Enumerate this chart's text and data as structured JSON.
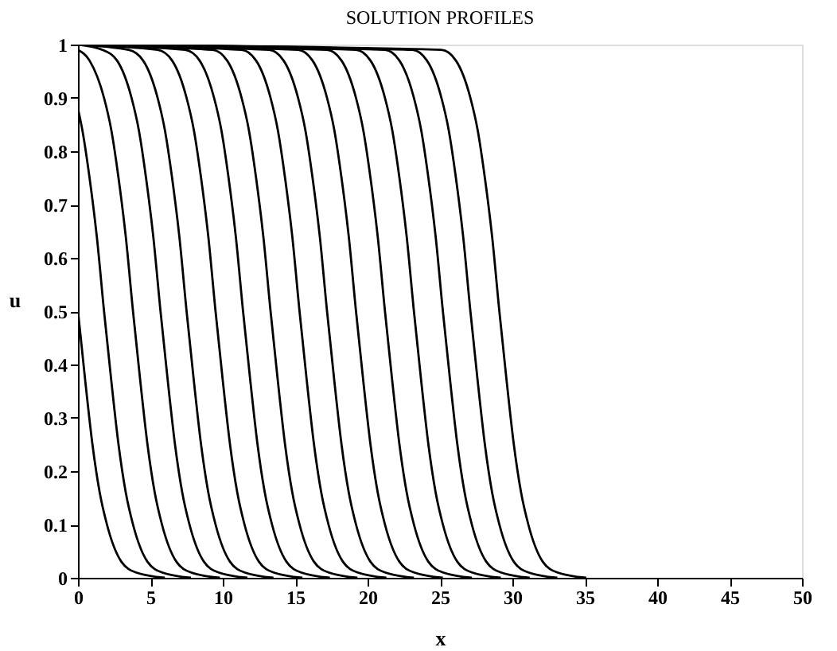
{
  "chart_data": {
    "type": "line",
    "title": "SOLUTION PROFILES",
    "xlabel": "x",
    "ylabel": "u",
    "xlim": [
      0,
      50
    ],
    "ylim": [
      0,
      1
    ],
    "xticks": [
      0,
      5,
      10,
      15,
      20,
      25,
      30,
      35,
      40,
      45,
      50
    ],
    "yticks": [
      0,
      0.1,
      0.2,
      0.3,
      0.4,
      0.5,
      0.6,
      0.7,
      0.8,
      0.9,
      1
    ],
    "grid": false,
    "legend": false,
    "line_style": "solid",
    "series": [
      {
        "color": "#000000",
        "x": [
          0,
          0.5,
          1,
          1.5,
          2,
          3,
          4,
          6
        ],
        "values": [
          0.5,
          0.37,
          0.25,
          0.16,
          0.1,
          0.03,
          0.01,
          0
        ]
      },
      {
        "color": "#000000",
        "x": [
          0,
          0.3,
          0.8,
          1.3,
          1.8,
          2.3,
          2.8,
          3.3,
          3.8,
          4.8,
          5.8,
          7.8
        ],
        "values": [
          0.88,
          0.84,
          0.75,
          0.64,
          0.5,
          0.37,
          0.25,
          0.16,
          0.1,
          0.03,
          0.01,
          0
        ]
      },
      {
        "color": "#000000",
        "x": [
          0,
          0.8,
          1.8,
          2.3,
          2.8,
          3.3,
          3.8,
          4.3,
          4.8,
          5.3,
          5.8,
          6.8,
          7.8,
          9.8
        ],
        "values": [
          0.99,
          0.97,
          0.9,
          0.84,
          0.75,
          0.64,
          0.5,
          0.37,
          0.25,
          0.16,
          0.1,
          0.03,
          0.01,
          0
        ]
      },
      {
        "color": "#000000",
        "x": [
          0,
          1.7,
          2.7,
          3.7,
          4.2,
          4.7,
          5.2,
          5.7,
          6.2,
          6.7,
          7.2,
          7.7,
          8.7,
          9.7,
          11.7
        ],
        "values": [
          1,
          0.99,
          0.97,
          0.9,
          0.84,
          0.75,
          0.64,
          0.5,
          0.37,
          0.25,
          0.16,
          0.1,
          0.03,
          0.01,
          0
        ]
      },
      {
        "color": "#000000",
        "x": [
          0,
          3.5,
          4.5,
          5.5,
          6,
          6.5,
          7,
          7.5,
          8,
          8.5,
          9,
          9.5,
          10.5,
          11.5,
          13.5
        ],
        "values": [
          1,
          0.99,
          0.97,
          0.9,
          0.84,
          0.75,
          0.64,
          0.5,
          0.37,
          0.25,
          0.16,
          0.1,
          0.03,
          0.01,
          0
        ]
      },
      {
        "color": "#000000",
        "x": [
          0,
          5.5,
          6.5,
          7.5,
          8,
          8.5,
          9,
          9.5,
          10,
          10.5,
          11,
          11.5,
          12.5,
          13.5,
          15.5
        ],
        "values": [
          1,
          0.99,
          0.97,
          0.9,
          0.84,
          0.75,
          0.64,
          0.5,
          0.37,
          0.25,
          0.16,
          0.1,
          0.03,
          0.01,
          0
        ]
      },
      {
        "color": "#000000",
        "x": [
          0,
          7.4,
          8.4,
          9.4,
          9.9,
          10.4,
          10.9,
          11.4,
          11.9,
          12.4,
          12.9,
          13.4,
          14.4,
          15.4,
          17.4
        ],
        "values": [
          1,
          0.99,
          0.97,
          0.9,
          0.84,
          0.75,
          0.64,
          0.5,
          0.37,
          0.25,
          0.16,
          0.1,
          0.03,
          0.01,
          0
        ]
      },
      {
        "color": "#000000",
        "x": [
          0,
          9.3,
          10.3,
          11.3,
          11.8,
          12.3,
          12.8,
          13.3,
          13.8,
          14.3,
          14.8,
          15.3,
          16.3,
          17.3,
          19.3
        ],
        "values": [
          1,
          0.99,
          0.97,
          0.9,
          0.84,
          0.75,
          0.64,
          0.5,
          0.37,
          0.25,
          0.16,
          0.1,
          0.03,
          0.01,
          0
        ]
      },
      {
        "color": "#000000",
        "x": [
          0,
          11.3,
          12.3,
          13.3,
          13.8,
          14.3,
          14.8,
          15.3,
          15.8,
          16.3,
          16.8,
          17.3,
          18.3,
          19.3,
          21.3
        ],
        "values": [
          1,
          0.99,
          0.97,
          0.9,
          0.84,
          0.75,
          0.64,
          0.5,
          0.37,
          0.25,
          0.16,
          0.1,
          0.03,
          0.01,
          0
        ]
      },
      {
        "color": "#000000",
        "x": [
          0,
          13.2,
          14.2,
          15.2,
          15.7,
          16.2,
          16.7,
          17.2,
          17.7,
          18.2,
          18.7,
          19.2,
          20.2,
          21.2,
          23.2
        ],
        "values": [
          1,
          0.99,
          0.97,
          0.9,
          0.84,
          0.75,
          0.64,
          0.5,
          0.37,
          0.25,
          0.16,
          0.1,
          0.03,
          0.01,
          0
        ]
      },
      {
        "color": "#000000",
        "x": [
          0,
          15.2,
          16.2,
          17.2,
          17.7,
          18.2,
          18.7,
          19.2,
          19.7,
          20.2,
          20.7,
          21.2,
          22.2,
          23.2,
          25.2
        ],
        "values": [
          1,
          0.99,
          0.97,
          0.9,
          0.84,
          0.75,
          0.64,
          0.5,
          0.37,
          0.25,
          0.16,
          0.1,
          0.03,
          0.01,
          0
        ]
      },
      {
        "color": "#000000",
        "x": [
          0,
          17.2,
          18.2,
          19.2,
          19.7,
          20.2,
          20.7,
          21.2,
          21.7,
          22.2,
          22.7,
          23.2,
          24.2,
          25.2,
          27.2
        ],
        "values": [
          1,
          0.99,
          0.97,
          0.9,
          0.84,
          0.75,
          0.64,
          0.5,
          0.37,
          0.25,
          0.16,
          0.1,
          0.03,
          0.01,
          0
        ]
      },
      {
        "color": "#000000",
        "x": [
          0,
          19.2,
          20.2,
          21.2,
          21.7,
          22.2,
          22.7,
          23.2,
          23.7,
          24.2,
          24.7,
          25.2,
          26.2,
          27.2,
          29.2
        ],
        "values": [
          1,
          0.99,
          0.97,
          0.9,
          0.84,
          0.75,
          0.64,
          0.5,
          0.37,
          0.25,
          0.16,
          0.1,
          0.03,
          0.01,
          0
        ]
      },
      {
        "color": "#000000",
        "x": [
          0,
          21.2,
          22.2,
          23.2,
          23.7,
          24.2,
          24.7,
          25.2,
          25.7,
          26.2,
          26.7,
          27.2,
          28.2,
          29.2,
          31.2
        ],
        "values": [
          1,
          0.99,
          0.97,
          0.9,
          0.84,
          0.75,
          0.64,
          0.5,
          0.37,
          0.25,
          0.16,
          0.1,
          0.03,
          0.01,
          0
        ]
      },
      {
        "color": "#000000",
        "x": [
          0,
          23.1,
          24.1,
          25.1,
          25.6,
          26.1,
          26.6,
          27.1,
          27.6,
          28.1,
          28.6,
          29.1,
          30.1,
          31.1,
          33.1
        ],
        "values": [
          1,
          0.99,
          0.97,
          0.9,
          0.84,
          0.75,
          0.64,
          0.5,
          0.37,
          0.25,
          0.16,
          0.1,
          0.03,
          0.01,
          0
        ]
      },
      {
        "color": "#000000",
        "x": [
          0,
          25.1,
          26.1,
          27.1,
          27.6,
          28.1,
          28.6,
          29.1,
          29.6,
          30.1,
          30.6,
          31.1,
          32.1,
          33.1,
          35.1
        ],
        "values": [
          1,
          0.99,
          0.97,
          0.9,
          0.84,
          0.75,
          0.64,
          0.5,
          0.37,
          0.25,
          0.16,
          0.1,
          0.03,
          0.01,
          0
        ]
      }
    ]
  }
}
